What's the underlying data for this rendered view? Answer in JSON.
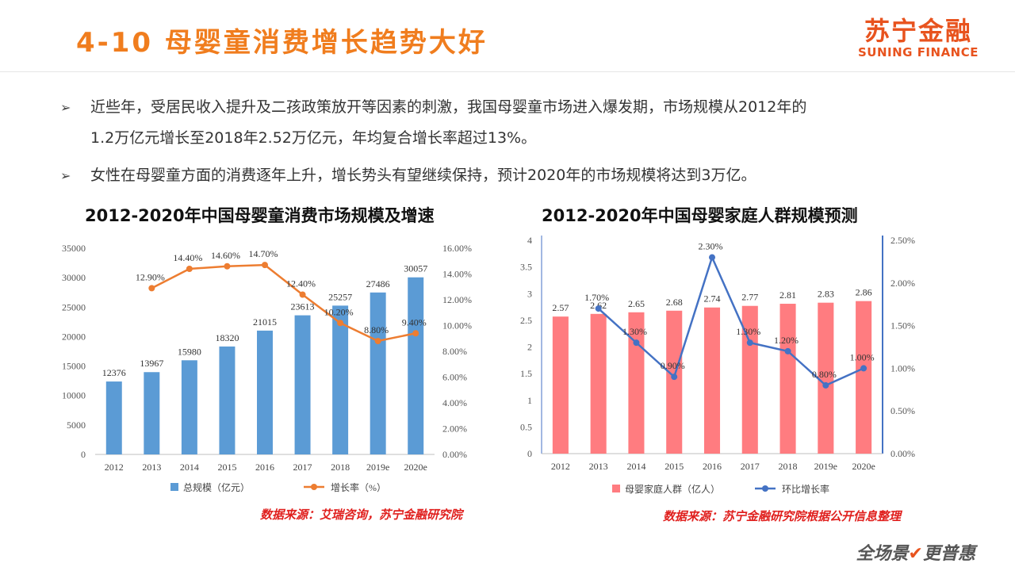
{
  "header": {
    "title": "4-10 母婴童消费增长趋势大好",
    "logo_cn": "苏宁金融",
    "logo_en": "SUNING FINANCE"
  },
  "bullets": [
    {
      "mark": "➢",
      "lines": [
        "近些年，受居民收入提升及二孩政策放开等因素的刺激，我国母婴童市场进入爆发期，市场规模从2012年的",
        "1.2万亿元增长至2018年2.52万亿元，年均复合增长率超过13%。"
      ]
    },
    {
      "mark": "➢",
      "lines": [
        "女性在母婴童方面的消费逐年上升，增长势头有望继续保持，预计2020年的市场规模将达到3万亿。"
      ]
    }
  ],
  "chart_data": [
    {
      "type": "bar+line",
      "title": "2012-2020年中国母婴童消费市场规模及增速",
      "categories": [
        "2012",
        "2013",
        "2014",
        "2015",
        "2016",
        "2017",
        "2018",
        "2019e",
        "2020e"
      ],
      "series": [
        {
          "name": "总规模（亿元）",
          "type": "bar",
          "axis": "left",
          "values": [
            12376,
            13967,
            15980,
            18320,
            21015,
            23613,
            25257,
            27486,
            30057
          ],
          "labels": [
            "12376",
            "13967",
            "15980",
            "18320",
            "21015",
            "23613",
            "25257",
            "27486",
            "30057"
          ]
        },
        {
          "name": "增长率（%）",
          "type": "line",
          "axis": "right",
          "values": [
            null,
            12.9,
            14.4,
            14.6,
            14.7,
            12.4,
            10.2,
            8.8,
            9.4
          ],
          "labels": [
            "",
            "12.90%",
            "14.40%",
            "14.60%",
            "14.70%",
            "12.40%",
            "10.20%",
            "8.80%",
            "9.40%"
          ]
        }
      ],
      "y_left": {
        "min": 0,
        "max": 35000,
        "ticks": [
          "0",
          "5000",
          "10000",
          "15000",
          "20000",
          "25000",
          "30000",
          "35000"
        ]
      },
      "y_right": {
        "min": 0,
        "max": 16,
        "ticks": [
          "0.00%",
          "2.00%",
          "4.00%",
          "6.00%",
          "8.00%",
          "10.00%",
          "12.00%",
          "14.00%",
          "16.00%"
        ]
      },
      "colors": {
        "bar": "#5b9bd5",
        "line": "#ed7d31"
      },
      "legend": "bottom",
      "source": "数据来源：艾瑞咨询，苏宁金融研究院"
    },
    {
      "type": "bar+line",
      "title": "2012-2020年中国母婴家庭人群规模预测",
      "categories": [
        "2012",
        "2013",
        "2014",
        "2015",
        "2016",
        "2017",
        "2018",
        "2019e",
        "2020e"
      ],
      "series": [
        {
          "name": "母婴家庭人群（亿人）",
          "type": "bar",
          "axis": "left",
          "values": [
            2.57,
            2.62,
            2.65,
            2.68,
            2.74,
            2.77,
            2.81,
            2.83,
            2.86
          ],
          "labels": [
            "2.57",
            "2.62",
            "2.65",
            "2.68",
            "2.74",
            "2.77",
            "2.81",
            "2.83",
            "2.86"
          ]
        },
        {
          "name": "环比增长率",
          "type": "line",
          "axis": "right",
          "values": [
            null,
            1.7,
            1.3,
            0.9,
            2.3,
            1.3,
            1.2,
            0.8,
            1.0
          ],
          "labels": [
            "",
            "1.70%",
            "1.30%",
            "0.90%",
            "2.30%",
            "1.30%",
            "1.20%",
            "0.80%",
            "1.00%"
          ]
        }
      ],
      "y_left": {
        "min": 0,
        "max": 4,
        "ticks": [
          "0",
          "0.5",
          "1",
          "1.5",
          "2",
          "2.5",
          "3",
          "3.5",
          "4"
        ]
      },
      "y_right": {
        "min": 0,
        "max": 2.5,
        "ticks": [
          "0.00%",
          "0.50%",
          "1.00%",
          "1.50%",
          "2.00%",
          "2.50%"
        ]
      },
      "colors": {
        "bar": "#ff7c80",
        "line": "#4472c4"
      },
      "legend": "bottom",
      "source": "数据来源：苏宁金融研究院根据公开信息整理"
    }
  ],
  "footer": {
    "slogan_a": "全场景",
    "slogan_check": "✔",
    "slogan_b": "更普惠"
  }
}
